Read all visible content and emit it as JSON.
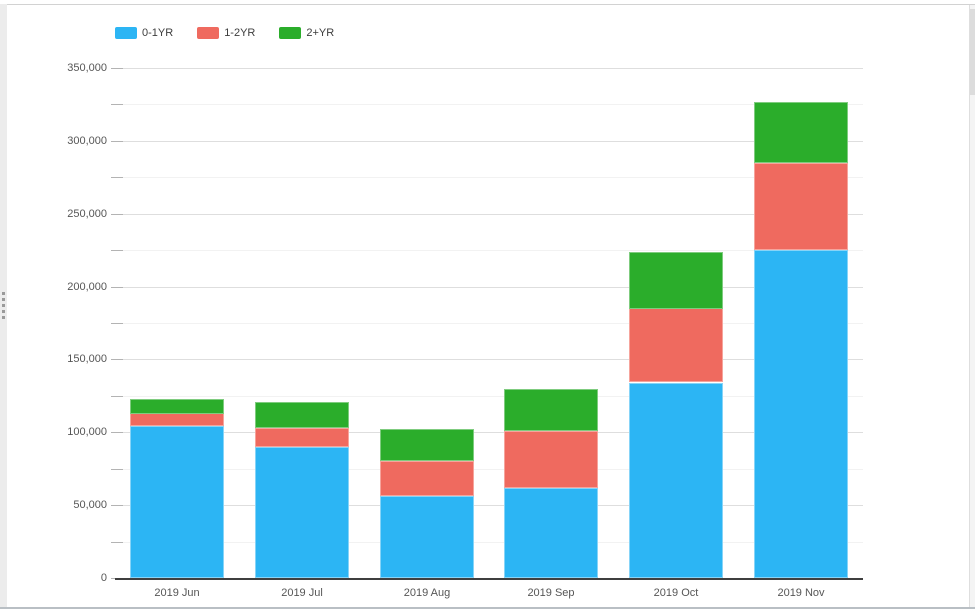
{
  "window": {
    "scrollbar": "vertical",
    "resize_grip": "left-edge"
  },
  "legend": {
    "position": "top-left",
    "items": [
      {
        "label": "0-1YR",
        "color": "#2cb5f4"
      },
      {
        "label": "1-2YR",
        "color": "#ef6a5f"
      },
      {
        "label": "2+YR",
        "color": "#2bad2b"
      }
    ]
  },
  "chart_data": {
    "type": "bar",
    "stacked": true,
    "title": "",
    "xlabel": "",
    "ylabel": "",
    "categories": [
      "2019 Jun",
      "2019 Jul",
      "2019 Aug",
      "2019 Sep",
      "2019 Oct",
      "2019 Nov"
    ],
    "series": [
      {
        "name": "0-1YR",
        "color": "#2cb5f4",
        "border_color": "#86d4f8",
        "values": [
          104000,
          90000,
          56000,
          62000,
          134000,
          225000
        ]
      },
      {
        "name": "1-2YR",
        "color": "#ef6a5f",
        "border_color": "#f6a49c",
        "values": [
          9000,
          13000,
          24000,
          39000,
          51000,
          60000
        ]
      },
      {
        "name": "2+YR",
        "color": "#2bad2b",
        "border_color": "#7fcc7f",
        "values": [
          10000,
          18000,
          22000,
          29000,
          39000,
          42000
        ]
      }
    ],
    "totals": [
      123000,
      121000,
      102000,
      130000,
      224000,
      327000
    ],
    "ylim": [
      0,
      350000
    ],
    "y_major_step": 50000,
    "y_minor_step": 25000,
    "y_tick_labels": [
      "0",
      "50,000",
      "100,000",
      "150,000",
      "200,000",
      "250,000",
      "300,000",
      "350,000"
    ],
    "grid": "horizontal",
    "legend_position": "top-left"
  }
}
